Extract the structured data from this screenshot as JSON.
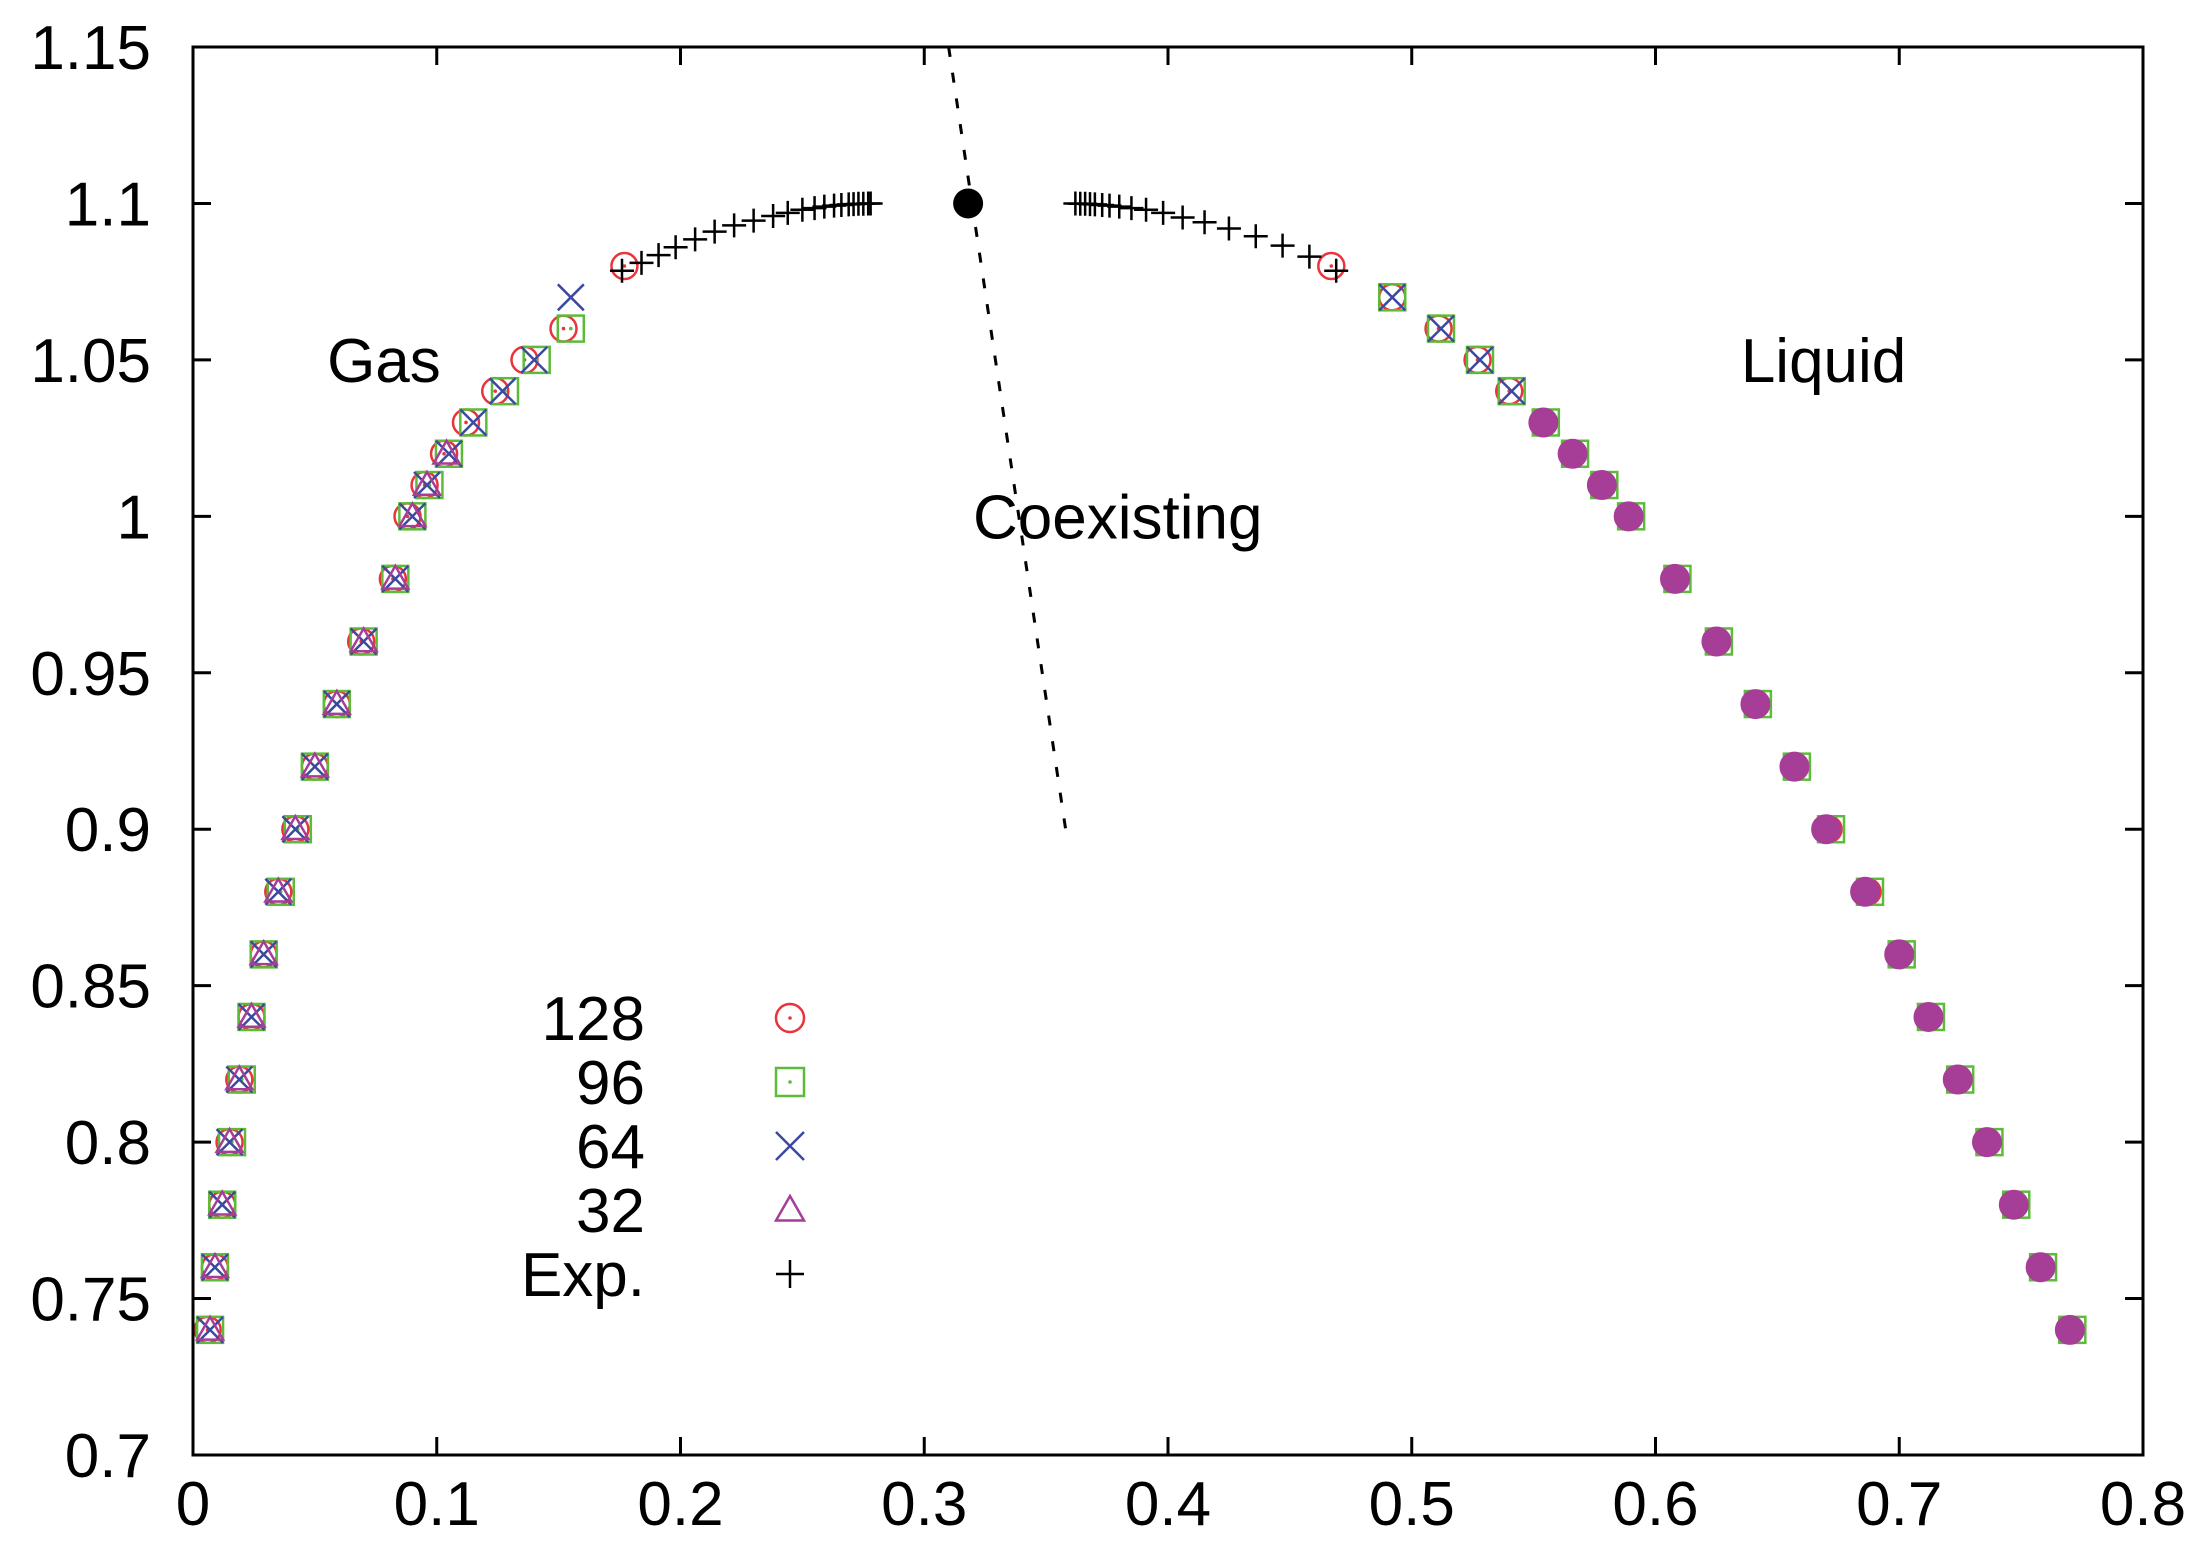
{
  "chart_data": {
    "type": "scatter",
    "title": "",
    "xlabel": "",
    "ylabel": "",
    "xlim": [
      0,
      0.8
    ],
    "ylim": [
      0.7,
      1.15
    ],
    "x_ticks": [
      "0",
      "0.1",
      "0.2",
      "0.3",
      "0.4",
      "0.5",
      "0.6",
      "0.7",
      "0.8"
    ],
    "y_ticks": [
      "0.7",
      "0.75",
      "0.8",
      "0.85",
      "0.9",
      "0.95",
      "1",
      "1.05",
      "1.1",
      "1.15"
    ],
    "grid": false,
    "legend_position": "bottom-left",
    "annotations": [
      {
        "text": "Gas",
        "x": 0.055,
        "y": 1.05
      },
      {
        "text": "Coexisting",
        "x": 0.32,
        "y": 1.0
      },
      {
        "text": "Liquid",
        "x": 0.635,
        "y": 1.05
      }
    ],
    "critical_point": {
      "x": 0.318,
      "y": 1.1
    },
    "coexisting_line": {
      "x": [
        0.31,
        0.358
      ],
      "y": [
        1.15,
        0.9
      ]
    },
    "series": [
      {
        "name": "128",
        "marker": "circle",
        "color": "#e8343a",
        "x": [
          0.006,
          0.009,
          0.012,
          0.015,
          0.019,
          0.024,
          0.029,
          0.035,
          0.042,
          0.05,
          0.059,
          0.069,
          0.082,
          0.088,
          0.095,
          0.103,
          0.112,
          0.124,
          0.136,
          0.152,
          0.177,
          0.467,
          0.492,
          0.511,
          0.527,
          0.54,
          0.554,
          0.566,
          0.578,
          0.589,
          0.608,
          0.625,
          0.641,
          0.657,
          0.671,
          0.687,
          0.7,
          0.712,
          0.724,
          0.736,
          0.747,
          0.758,
          0.77
        ],
        "y": [
          0.74,
          0.76,
          0.78,
          0.8,
          0.82,
          0.84,
          0.86,
          0.88,
          0.9,
          0.92,
          0.94,
          0.96,
          0.98,
          1.0,
          1.01,
          1.02,
          1.03,
          1.04,
          1.05,
          1.06,
          1.08,
          1.08,
          1.07,
          1.06,
          1.05,
          1.04,
          1.03,
          1.02,
          1.01,
          1.0,
          0.98,
          0.96,
          0.94,
          0.92,
          0.9,
          0.88,
          0.86,
          0.84,
          0.82,
          0.8,
          0.78,
          0.76,
          0.74
        ]
      },
      {
        "name": "96",
        "marker": "square",
        "color": "#5dbb3a",
        "x": [
          0.007,
          0.009,
          0.012,
          0.016,
          0.02,
          0.024,
          0.029,
          0.036,
          0.043,
          0.05,
          0.059,
          0.07,
          0.083,
          0.09,
          0.097,
          0.105,
          0.115,
          0.128,
          0.141,
          0.155,
          0.492,
          0.512,
          0.528,
          0.541,
          0.555,
          0.567,
          0.579,
          0.59,
          0.609,
          0.626,
          0.642,
          0.658,
          0.672,
          0.688,
          0.701,
          0.713,
          0.725,
          0.737,
          0.748,
          0.759,
          0.771
        ],
        "y": [
          0.74,
          0.76,
          0.78,
          0.8,
          0.82,
          0.84,
          0.86,
          0.88,
          0.9,
          0.92,
          0.94,
          0.96,
          0.98,
          1.0,
          1.01,
          1.02,
          1.03,
          1.04,
          1.05,
          1.06,
          1.07,
          1.06,
          1.05,
          1.04,
          1.03,
          1.02,
          1.01,
          1.0,
          0.98,
          0.96,
          0.94,
          0.92,
          0.9,
          0.88,
          0.86,
          0.84,
          0.82,
          0.8,
          0.78,
          0.76,
          0.74
        ]
      },
      {
        "name": "64",
        "marker": "cross",
        "color": "#3b4aa0",
        "x": [
          0.007,
          0.009,
          0.012,
          0.015,
          0.019,
          0.024,
          0.029,
          0.035,
          0.042,
          0.05,
          0.059,
          0.07,
          0.083,
          0.09,
          0.096,
          0.105,
          0.115,
          0.127,
          0.14,
          0.155,
          0.492,
          0.512,
          0.528,
          0.541
        ],
        "y": [
          0.74,
          0.76,
          0.78,
          0.8,
          0.82,
          0.84,
          0.86,
          0.88,
          0.9,
          0.92,
          0.94,
          0.96,
          0.98,
          1.0,
          1.01,
          1.02,
          1.03,
          1.04,
          1.05,
          1.07,
          1.07,
          1.06,
          1.05,
          1.04
        ]
      },
      {
        "name": "32",
        "marker": "triangle",
        "color": "#a63d96",
        "x": [
          0.007,
          0.009,
          0.012,
          0.015,
          0.019,
          0.024,
          0.029,
          0.035,
          0.042,
          0.05,
          0.059,
          0.07,
          0.083,
          0.09,
          0.096,
          0.104,
          0.554,
          0.566,
          0.578,
          0.589,
          0.608,
          0.625,
          0.641,
          0.657,
          0.67,
          0.686,
          0.7,
          0.712,
          0.724,
          0.736,
          0.747,
          0.758,
          0.77
        ],
        "y": [
          0.74,
          0.76,
          0.78,
          0.8,
          0.82,
          0.84,
          0.86,
          0.88,
          0.9,
          0.92,
          0.94,
          0.96,
          0.98,
          1.0,
          1.01,
          1.02,
          1.03,
          1.02,
          1.01,
          1.0,
          0.98,
          0.96,
          0.94,
          0.92,
          0.9,
          0.88,
          0.86,
          0.84,
          0.82,
          0.8,
          0.78,
          0.76,
          0.74
        ]
      },
      {
        "name": "Exp.",
        "marker": "plus",
        "color": "#000000",
        "x": [
          0.176,
          0.184,
          0.191,
          0.198,
          0.206,
          0.214,
          0.222,
          0.23,
          0.238,
          0.244,
          0.25,
          0.255,
          0.259,
          0.263,
          0.266,
          0.269,
          0.271,
          0.273,
          0.275,
          0.277,
          0.278,
          0.362,
          0.364,
          0.366,
          0.368,
          0.37,
          0.373,
          0.376,
          0.38,
          0.385,
          0.391,
          0.398,
          0.406,
          0.415,
          0.425,
          0.436,
          0.447,
          0.458,
          0.469
        ],
        "y": [
          1.0785,
          1.081,
          1.0835,
          1.086,
          1.0885,
          1.091,
          1.093,
          1.0945,
          1.096,
          1.097,
          1.098,
          1.0985,
          1.099,
          1.0993,
          1.0995,
          1.0997,
          1.0998,
          1.0999,
          1.0999,
          1.1,
          1.1,
          1.1,
          1.0999,
          1.0999,
          1.0998,
          1.0997,
          1.0995,
          1.0993,
          1.099,
          1.0985,
          1.098,
          1.097,
          1.0955,
          1.094,
          1.092,
          1.0895,
          1.0865,
          1.083,
          1.0785
        ]
      }
    ]
  }
}
